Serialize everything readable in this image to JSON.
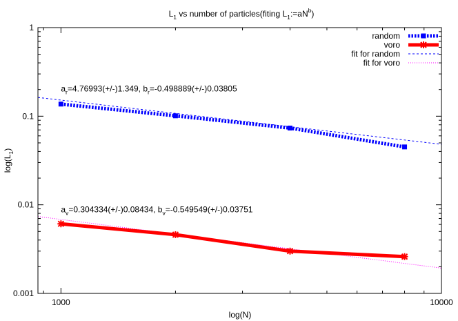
{
  "chart_data": {
    "type": "line",
    "title": {
      "parts": [
        {
          "t": "L"
        },
        {
          "t": "1",
          "sub": true
        },
        {
          "t": " vs number of particles(fiting L"
        },
        {
          "t": "1",
          "sub": true
        },
        {
          "t": ":=aN"
        },
        {
          "t": "b",
          "sup": true
        },
        {
          "t": ")"
        }
      ]
    },
    "xlabel": "log(N)",
    "ylabel": {
      "parts": [
        {
          "t": "log(L"
        },
        {
          "t": "1",
          "sub": true
        },
        {
          "t": ")"
        }
      ]
    },
    "x_scale": "log",
    "y_scale": "log",
    "xlim": [
      870,
      10000
    ],
    "ylim": [
      0.001,
      1
    ],
    "x_ticks": [
      {
        "value": 1000,
        "label": "1000"
      },
      {
        "value": 10000,
        "label": "10000"
      }
    ],
    "y_ticks": [
      {
        "value": 1,
        "label": "1"
      },
      {
        "value": 0.1,
        "label": "0.1"
      },
      {
        "value": 0.01,
        "label": "0.01"
      },
      {
        "value": 0.001,
        "label": "0.001"
      }
    ],
    "grid": false,
    "legend_position": "top-right",
    "series": [
      {
        "name": "random",
        "kind": "data",
        "color": "#0000ff",
        "style": "dotted-thick",
        "marker": "square",
        "x": [
          1000,
          2000,
          4000,
          8000
        ],
        "y": [
          0.137,
          0.101,
          0.0735,
          0.045
        ]
      },
      {
        "name": "voro",
        "kind": "data",
        "color": "#ff0000",
        "style": "solid-thick",
        "marker": "star",
        "x": [
          1000,
          2000,
          4000,
          8000
        ],
        "y": [
          0.0061,
          0.0046,
          0.003,
          0.0026
        ]
      },
      {
        "name": "fit for random",
        "kind": "fit",
        "color": "#0000ff",
        "style": "dashed-thin",
        "a": 4.76993,
        "b": -0.498889
      },
      {
        "name": "fit for voro",
        "kind": "fit",
        "color": "#ff00ff",
        "style": "dotted-thin",
        "a": 0.304334,
        "b": -0.549549
      }
    ],
    "annotations": [
      {
        "anchor_x": 1000,
        "anchor_y": 0.19,
        "parts": [
          {
            "t": "a"
          },
          {
            "t": "r",
            "sub": true
          },
          {
            "t": "=4.76993(+/-)1.349, b"
          },
          {
            "t": "r",
            "sub": true
          },
          {
            "t": "=-0.498889(+/-)0.03805"
          }
        ]
      },
      {
        "anchor_x": 1000,
        "anchor_y": 0.0082,
        "parts": [
          {
            "t": "a"
          },
          {
            "t": "v",
            "sub": true
          },
          {
            "t": "=0.304334(+/-)0.08434, b"
          },
          {
            "t": "v",
            "sub": true
          },
          {
            "t": "=-0.549549(+/-)0.03751"
          }
        ]
      }
    ]
  }
}
